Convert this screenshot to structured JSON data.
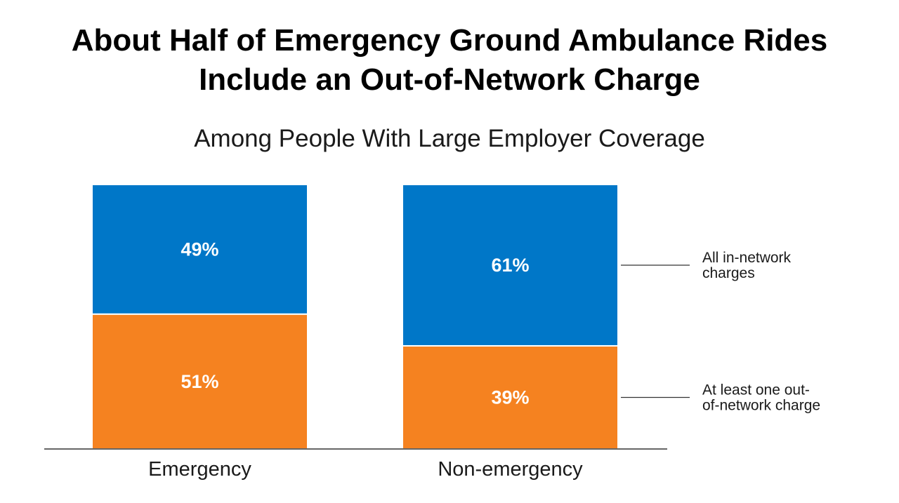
{
  "chart_data": {
    "type": "bar",
    "stacked": true,
    "normalized": true,
    "title_lines": [
      "About Half of Emergency Ground Ambulance Rides",
      "Include an Out-of-Network Charge"
    ],
    "subtitle": "Among People With Large Employer Coverage",
    "categories": [
      "Emergency",
      "Non-emergency"
    ],
    "series": [
      {
        "name": "At least one out-of-network charge",
        "legend_lines": [
          "At least one out-",
          "of-network charge"
        ],
        "values": [
          51,
          39
        ],
        "labels": [
          "51%",
          "39%"
        ],
        "color": "#f58220"
      },
      {
        "name": "All in-network charges",
        "legend_lines": [
          "All in-network",
          "charges"
        ],
        "values": [
          49,
          61
        ],
        "labels": [
          "49%",
          "61%"
        ],
        "color": "#0077c8"
      }
    ],
    "ylim": [
      0,
      100
    ],
    "legend_position": "right",
    "xlabel": "",
    "ylabel": ""
  }
}
